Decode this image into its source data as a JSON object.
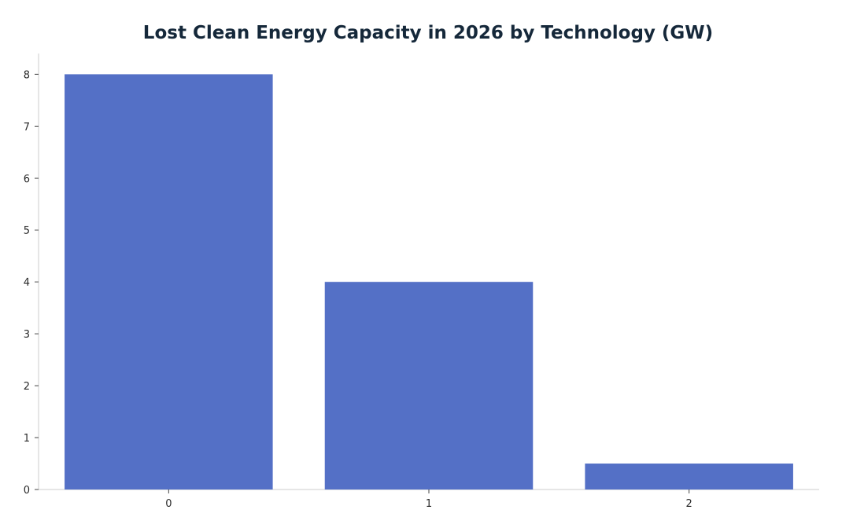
{
  "colors": {
    "bar": "#5470c6",
    "axis": "#cccccc",
    "title": "#15283a",
    "text": "#2a2a2a"
  },
  "chart_data": {
    "type": "bar",
    "title": "Lost Clean Energy Capacity in 2026 by Technology (GW)",
    "xlabel": "",
    "ylabel": "",
    "categories": [
      "0",
      "1",
      "2"
    ],
    "values": [
      8,
      4,
      0.5
    ],
    "ylim": [
      0,
      8.4
    ],
    "yticks": [
      0,
      1,
      2,
      3,
      4,
      5,
      6,
      7,
      8
    ],
    "grid": false,
    "legend": "none"
  }
}
